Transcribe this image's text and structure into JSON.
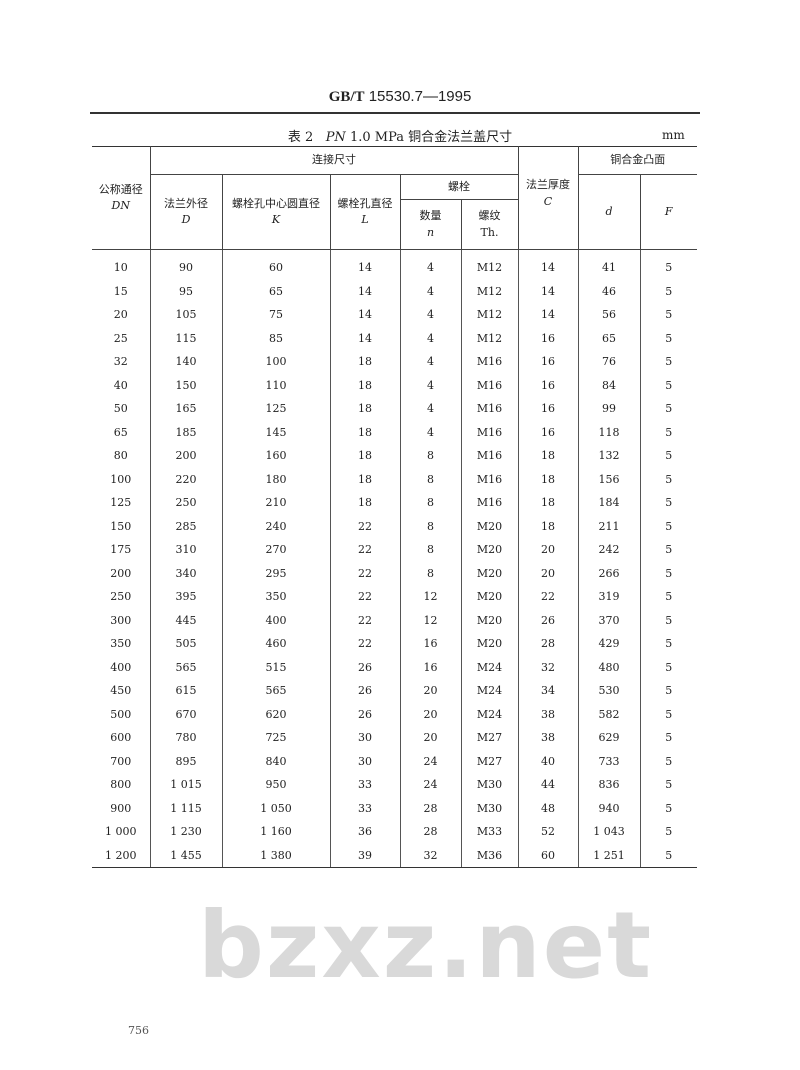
{
  "header": {
    "standard_bold": "GB/T",
    "standard_num": "15530.7—1995"
  },
  "watermark": "bzxz.net",
  "caption": {
    "prefix": "表 2",
    "pn": "PN",
    "rest": "1.0 MPa 铜合金法兰盖尺寸",
    "unit": "mm"
  },
  "table": {
    "headers": {
      "dn": "公称通径",
      "dn_sym": "DN",
      "connect": "连接尺寸",
      "D": "法兰外径",
      "D_sym": "D",
      "K": "螺栓孔中心圆直径",
      "K_sym": "K",
      "L": "螺栓孔直径",
      "L_sym": "L",
      "bolt": "螺栓",
      "n": "数量",
      "n_sym": "n",
      "th": "螺纹",
      "th_sym": "Th.",
      "C": "法兰厚度",
      "C_sym": "C",
      "raised": "铜合金凸面",
      "d_sym": "d",
      "F_sym": "F"
    },
    "rows": [
      [
        "10",
        "90",
        "60",
        "14",
        "4",
        "M12",
        "14",
        "41",
        "5"
      ],
      [
        "15",
        "95",
        "65",
        "14",
        "4",
        "M12",
        "14",
        "46",
        "5"
      ],
      [
        "20",
        "105",
        "75",
        "14",
        "4",
        "M12",
        "14",
        "56",
        "5"
      ],
      [
        "25",
        "115",
        "85",
        "14",
        "4",
        "M12",
        "16",
        "65",
        "5"
      ],
      [
        "32",
        "140",
        "100",
        "18",
        "4",
        "M16",
        "16",
        "76",
        "5"
      ],
      [
        "40",
        "150",
        "110",
        "18",
        "4",
        "M16",
        "16",
        "84",
        "5"
      ],
      [
        "50",
        "165",
        "125",
        "18",
        "4",
        "M16",
        "16",
        "99",
        "5"
      ],
      [
        "65",
        "185",
        "145",
        "18",
        "4",
        "M16",
        "16",
        "118",
        "5"
      ],
      [
        "80",
        "200",
        "160",
        "18",
        "8",
        "M16",
        "18",
        "132",
        "5"
      ],
      [
        "100",
        "220",
        "180",
        "18",
        "8",
        "M16",
        "18",
        "156",
        "5"
      ],
      [
        "125",
        "250",
        "210",
        "18",
        "8",
        "M16",
        "18",
        "184",
        "5"
      ],
      [
        "150",
        "285",
        "240",
        "22",
        "8",
        "M20",
        "18",
        "211",
        "5"
      ],
      [
        "175",
        "310",
        "270",
        "22",
        "8",
        "M20",
        "20",
        "242",
        "5"
      ],
      [
        "200",
        "340",
        "295",
        "22",
        "8",
        "M20",
        "20",
        "266",
        "5"
      ],
      [
        "250",
        "395",
        "350",
        "22",
        "12",
        "M20",
        "22",
        "319",
        "5"
      ],
      [
        "300",
        "445",
        "400",
        "22",
        "12",
        "M20",
        "26",
        "370",
        "5"
      ],
      [
        "350",
        "505",
        "460",
        "22",
        "16",
        "M20",
        "28",
        "429",
        "5"
      ],
      [
        "400",
        "565",
        "515",
        "26",
        "16",
        "M24",
        "32",
        "480",
        "5"
      ],
      [
        "450",
        "615",
        "565",
        "26",
        "20",
        "M24",
        "34",
        "530",
        "5"
      ],
      [
        "500",
        "670",
        "620",
        "26",
        "20",
        "M24",
        "38",
        "582",
        "5"
      ],
      [
        "600",
        "780",
        "725",
        "30",
        "20",
        "M27",
        "38",
        "629",
        "5"
      ],
      [
        "700",
        "895",
        "840",
        "30",
        "24",
        "M27",
        "40",
        "733",
        "5"
      ],
      [
        "800",
        "1 015",
        "950",
        "33",
        "24",
        "M30",
        "44",
        "836",
        "5"
      ],
      [
        "900",
        "1 115",
        "1 050",
        "33",
        "28",
        "M30",
        "48",
        "940",
        "5"
      ],
      [
        "1 000",
        "1 230",
        "1 160",
        "36",
        "28",
        "M33",
        "52",
        "1 043",
        "5"
      ],
      [
        "1 200",
        "1 455",
        "1 380",
        "39",
        "32",
        "M36",
        "60",
        "1 251",
        "5"
      ]
    ]
  },
  "footer": {
    "page_number": "756"
  }
}
